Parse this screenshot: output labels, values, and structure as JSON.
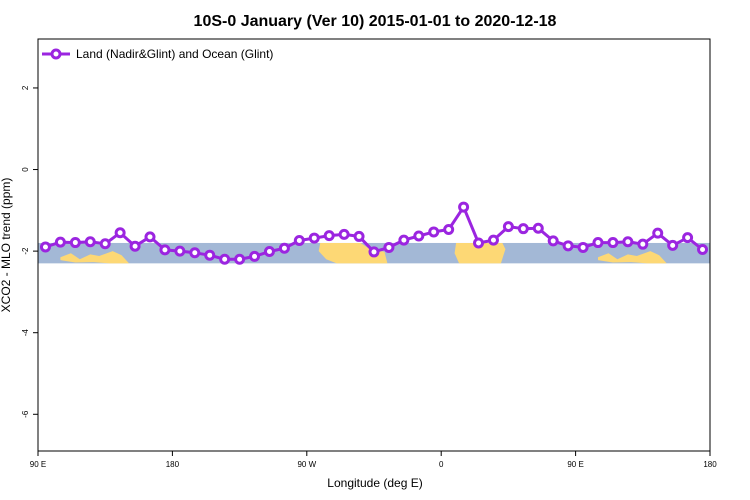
{
  "chart_data": {
    "type": "line",
    "title": "10S-0 January (Ver 10)   2015-01-01 to 2020-12-18",
    "xlabel": "Longitude (deg E)",
    "ylabel": "XCO2 - MLO trend (ppm)",
    "xlim": [
      90,
      540
    ],
    "ylim": [
      -6.9,
      3.2
    ],
    "x_ticks": [
      {
        "value": 90,
        "label": "90 E"
      },
      {
        "value": 180,
        "label": "180"
      },
      {
        "value": 270,
        "label": "90 W"
      },
      {
        "value": 360,
        "label": "0"
      },
      {
        "value": 450,
        "label": "90 E"
      },
      {
        "value": 540,
        "label": "180"
      }
    ],
    "y_ticks": [
      {
        "value": 2,
        "label": "2"
      },
      {
        "value": 0,
        "label": "0"
      },
      {
        "value": -2,
        "label": "-2"
      },
      {
        "value": -4,
        "label": "-4"
      },
      {
        "value": -6,
        "label": "-6"
      }
    ],
    "grid": false,
    "legend_position": "top-left",
    "background_map": {
      "lat_band": "10S-0",
      "y_range": [
        -2.3,
        -1.8
      ],
      "ocean_color": "#a3b8d6",
      "land_color": "#fdd875"
    },
    "series": [
      {
        "name": "Land (Nadir&Glint) and Ocean (Glint)",
        "color": "#9b25e0",
        "x": [
          95,
          105,
          115,
          125,
          135,
          145,
          155,
          165,
          175,
          185,
          195,
          205,
          215,
          225,
          235,
          245,
          255,
          265,
          275,
          285,
          295,
          305,
          315,
          325,
          335,
          345,
          355,
          365,
          375,
          385,
          395,
          405,
          415,
          425,
          435,
          445,
          455,
          465,
          475,
          485,
          495,
          505,
          515,
          525,
          535
        ],
        "values": [
          -1.9,
          -1.78,
          -1.79,
          -1.77,
          -1.82,
          -1.55,
          -1.88,
          -1.65,
          -1.97,
          -2.0,
          -2.04,
          -2.1,
          -2.2,
          -2.2,
          -2.13,
          -2.01,
          -1.93,
          -1.74,
          -1.68,
          -1.62,
          -1.59,
          -1.64,
          -2.02,
          -1.91,
          -1.73,
          -1.63,
          -1.53,
          -1.47,
          -0.92,
          -1.8,
          -1.73,
          -1.4,
          -1.45,
          -1.44,
          -1.75,
          -1.87,
          -1.91,
          -1.79,
          -1.79,
          -1.77,
          -1.83,
          -1.56,
          -1.86,
          -1.67,
          -1.96
        ]
      }
    ]
  }
}
